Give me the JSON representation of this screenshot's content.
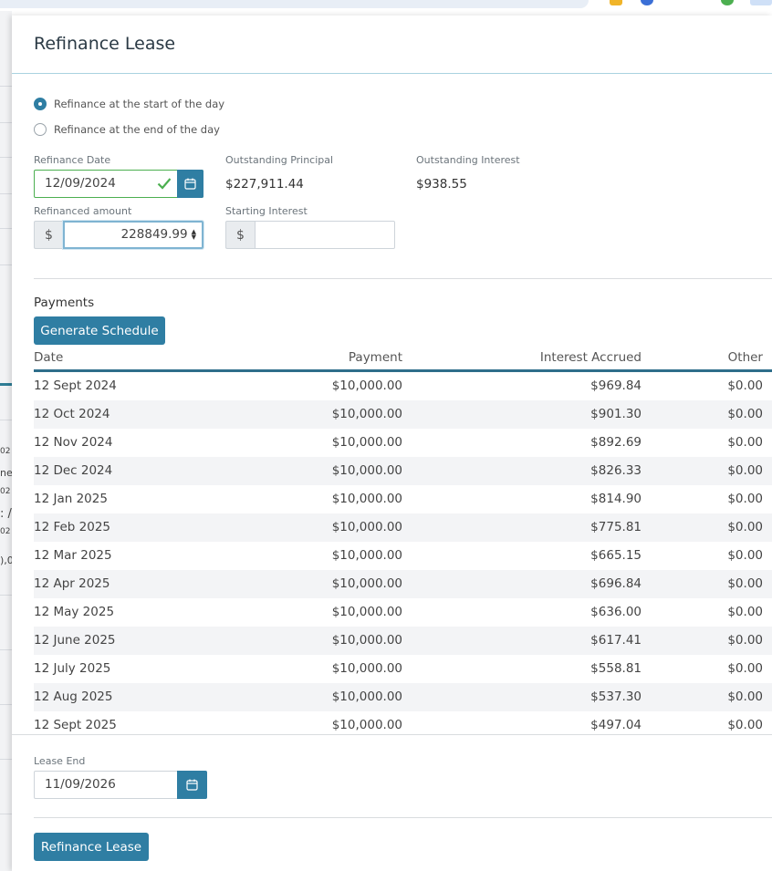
{
  "modal": {
    "title": "Refinance Lease",
    "radio_start": "Refinance at the start of the day",
    "radio_end": "Refinance at the end of the day",
    "refinance_date_label": "Refinance Date",
    "refinance_date_value": "12/09/2024",
    "outstanding_principal_label": "Outstanding Principal",
    "outstanding_principal_value": "$227,911.44",
    "outstanding_interest_label": "Outstanding Interest",
    "outstanding_interest_value": "$938.55",
    "refinanced_amount_label": "Refinanced amount",
    "currency_symbol": "$",
    "refinanced_amount_value": "228849.99",
    "starting_interest_label": "Starting Interest",
    "starting_interest_value": "",
    "payments_label": "Payments",
    "generate_schedule_button": "Generate Schedule",
    "lease_end_label": "Lease End",
    "lease_end_value": "11/09/2026",
    "refinance_button": "Refinance Lease"
  },
  "table": {
    "headers": [
      "Date",
      "Payment",
      "Interest Accrued",
      "Other"
    ],
    "rows": [
      [
        "12 Sept 2024",
        "$10,000.00",
        "$969.84",
        "$0.00"
      ],
      [
        "12 Oct 2024",
        "$10,000.00",
        "$901.30",
        "$0.00"
      ],
      [
        "12 Nov 2024",
        "$10,000.00",
        "$892.69",
        "$0.00"
      ],
      [
        "12 Dec 2024",
        "$10,000.00",
        "$826.33",
        "$0.00"
      ],
      [
        "12 Jan 2025",
        "$10,000.00",
        "$814.90",
        "$0.00"
      ],
      [
        "12 Feb 2025",
        "$10,000.00",
        "$775.81",
        "$0.00"
      ],
      [
        "12 Mar 2025",
        "$10,000.00",
        "$665.15",
        "$0.00"
      ],
      [
        "12 Apr 2025",
        "$10,000.00",
        "$696.84",
        "$0.00"
      ],
      [
        "12 May 2025",
        "$10,000.00",
        "$636.00",
        "$0.00"
      ],
      [
        "12 June 2025",
        "$10,000.00",
        "$617.41",
        "$0.00"
      ],
      [
        "12 July 2025",
        "$10,000.00",
        "$558.81",
        "$0.00"
      ],
      [
        "12 Aug 2025",
        "$10,000.00",
        "$537.30",
        "$0.00"
      ],
      [
        "12 Sept 2025",
        "$10,000.00",
        "$497.04",
        "$0.00"
      ]
    ]
  },
  "background": {
    "fragments": [
      "02",
      "ne",
      "02",
      ": /",
      "02",
      "),0"
    ]
  },
  "colors": {
    "accent": "#2f7ea3",
    "valid": "#4caf50",
    "header_rule": "#2e6e8a"
  }
}
